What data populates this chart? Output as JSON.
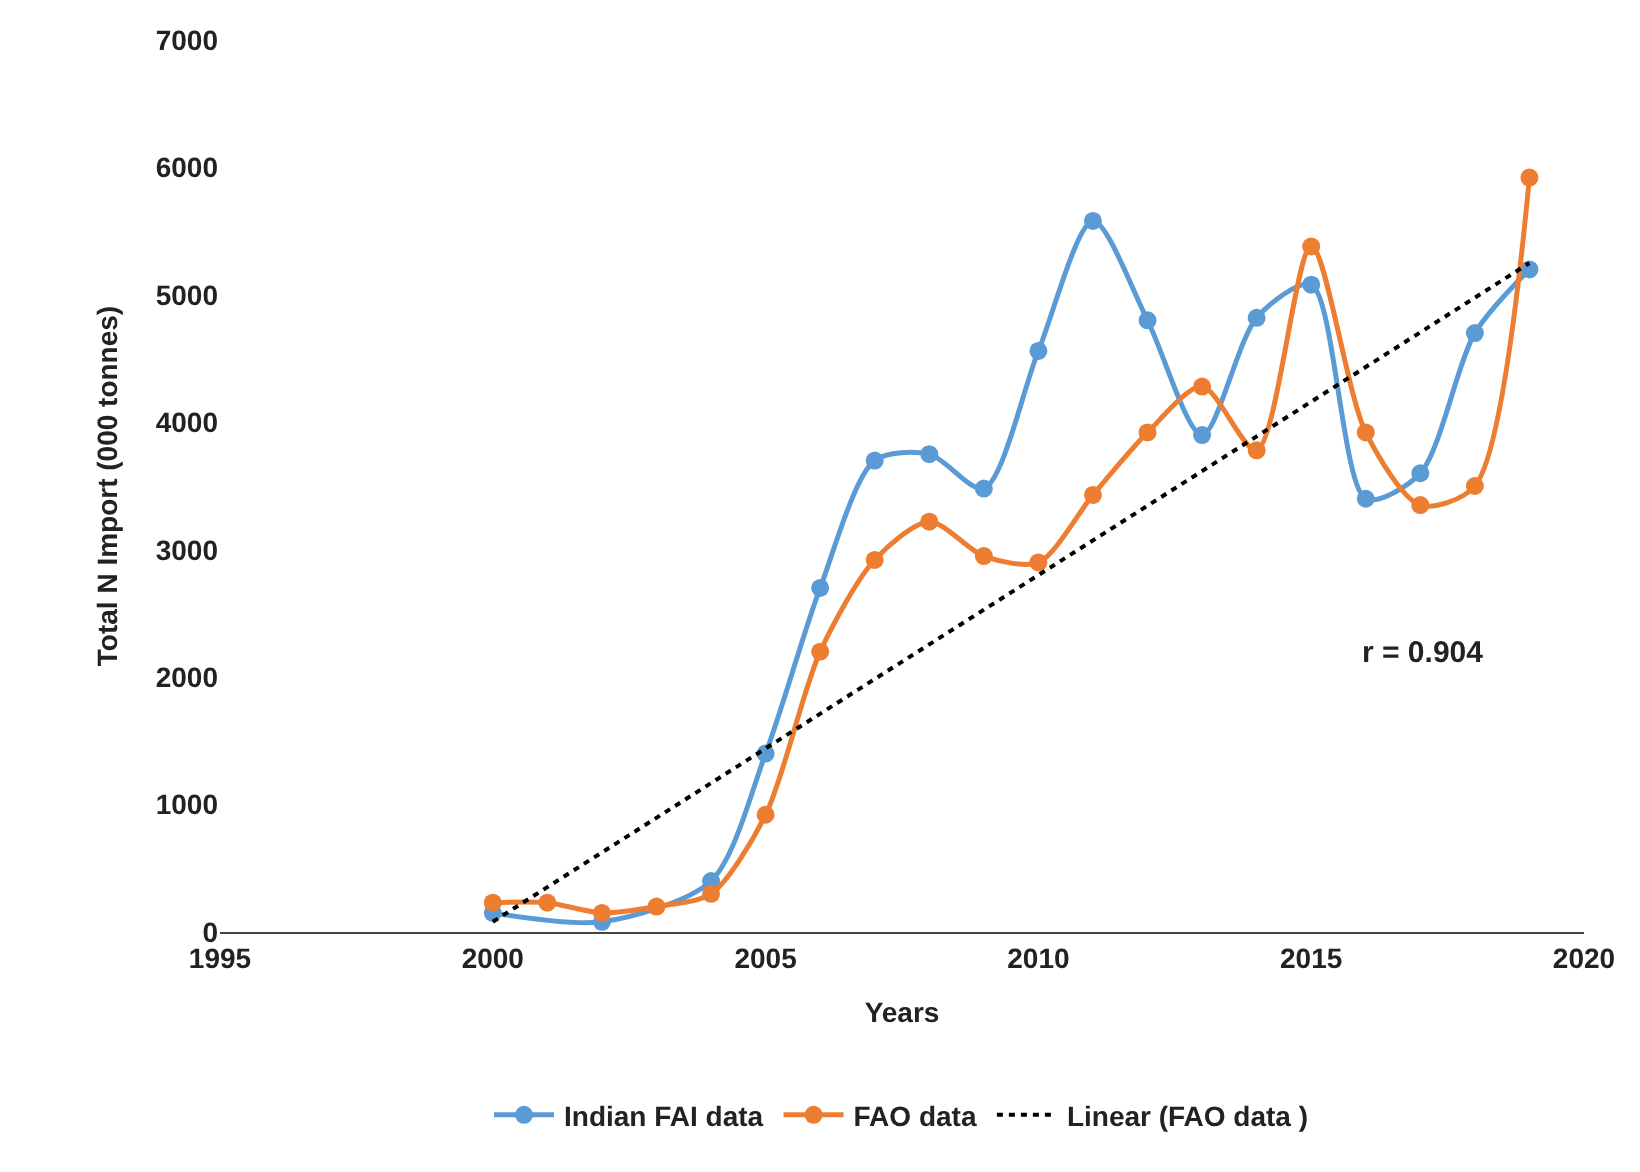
{
  "chart_data": {
    "type": "line",
    "xlabel": "Years",
    "ylabel": "Total N Import (000 tonnes)",
    "x": [
      2000,
      2001,
      2002,
      2003,
      2004,
      2005,
      2006,
      2007,
      2008,
      2009,
      2010,
      2011,
      2012,
      2013,
      2014,
      2015,
      2016,
      2017,
      2018,
      2019
    ],
    "series": [
      {
        "name": "Indian FAI data",
        "color": "#5b9bd5",
        "values": [
          150,
          null,
          80,
          null,
          400,
          1400,
          2700,
          3700,
          3750,
          3480,
          4560,
          5580,
          4800,
          3900,
          4820,
          5080,
          3400,
          3600,
          4700,
          5200
        ]
      },
      {
        "name": "FAO data",
        "color": "#ed7d31",
        "values": [
          230,
          230,
          150,
          200,
          300,
          920,
          2200,
          2920,
          3220,
          2950,
          2900,
          3430,
          3920,
          4280,
          3780,
          5380,
          3920,
          3350,
          3500,
          5920
        ]
      },
      {
        "name": "Linear (FAO data )",
        "color": "#000000",
        "x": [
          2000,
          2019
        ],
        "values": [
          80,
          5250
        ],
        "marker": "none",
        "line_style": "dotted"
      }
    ],
    "marker": "circle",
    "xlim": [
      1995,
      2020
    ],
    "xticks": [
      1995,
      2000,
      2005,
      2010,
      2015,
      2020
    ],
    "ylim": [
      0,
      7000
    ],
    "yticks": [
      0,
      1000,
      2000,
      3000,
      4000,
      5000,
      6000,
      7000
    ],
    "legend": "bottom",
    "annotations": [
      "r = 0.904"
    ]
  }
}
